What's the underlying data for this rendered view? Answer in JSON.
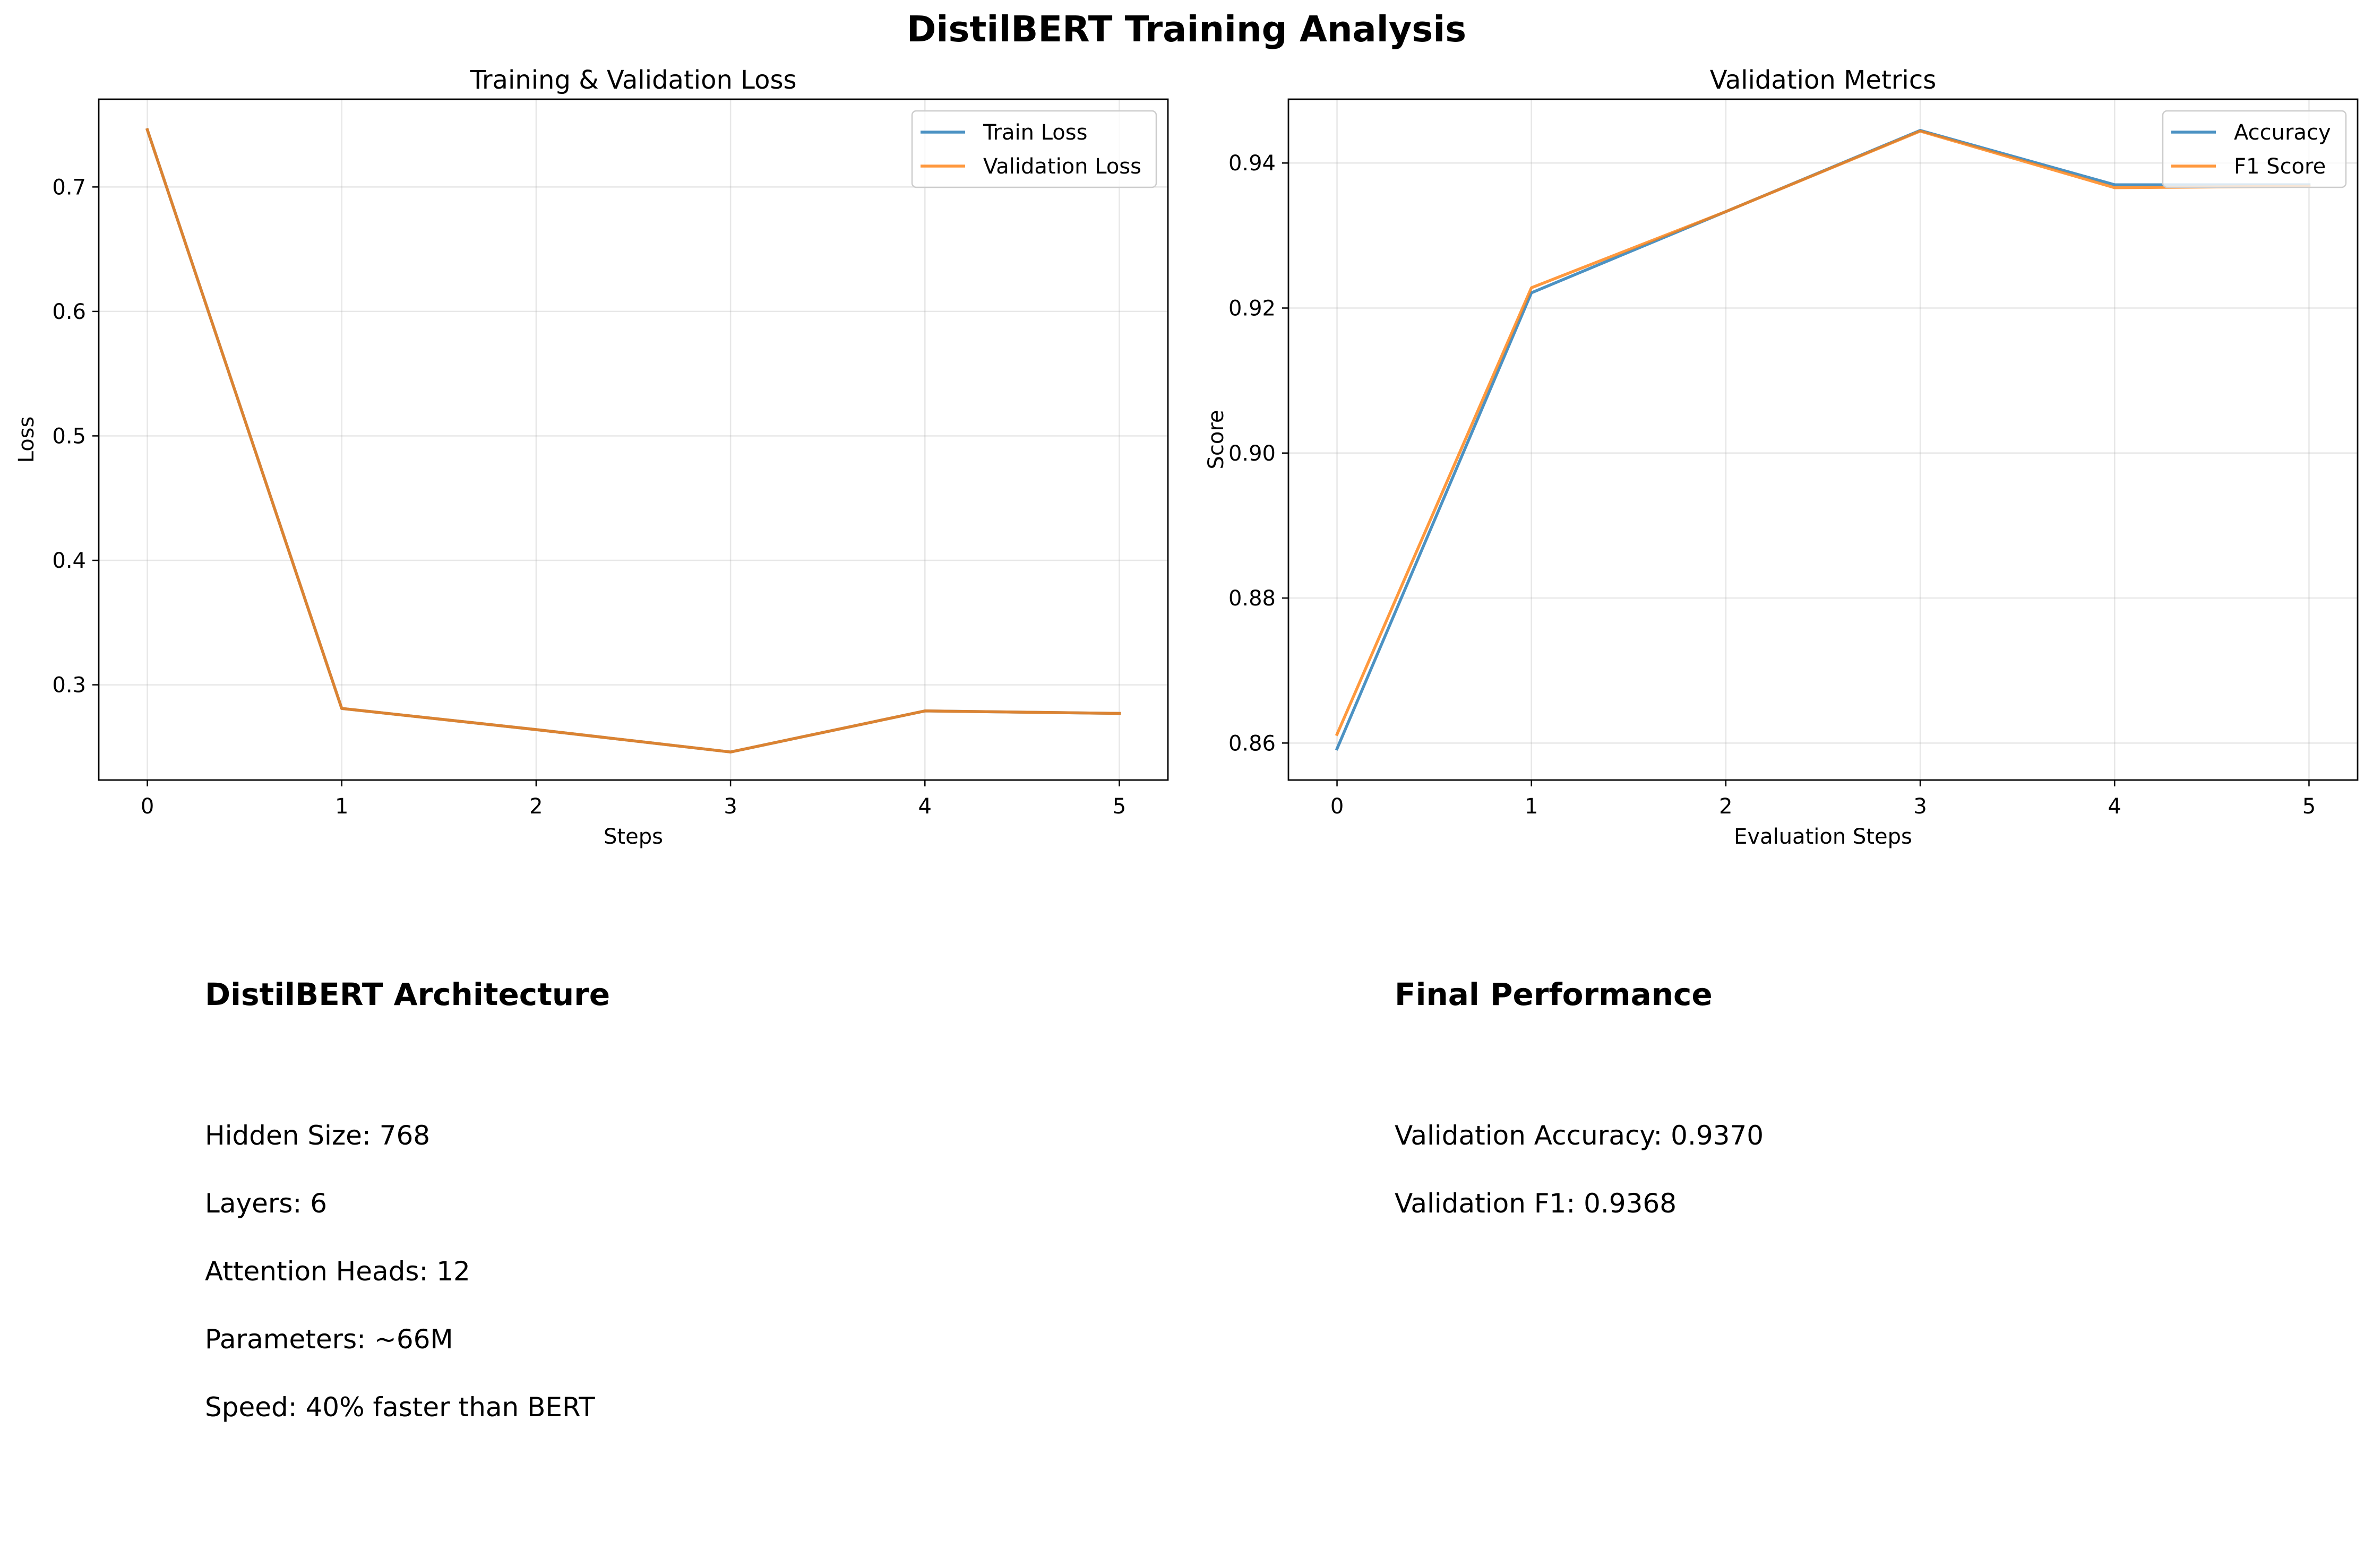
{
  "suptitle": "DistilBERT Training Analysis",
  "chart_data": [
    {
      "type": "line",
      "title": "Training & Validation Loss",
      "xlabel": "Steps",
      "ylabel": "Loss",
      "x": [
        0,
        1,
        2,
        3,
        4,
        5
      ],
      "xlim": [
        -0.25,
        5.25
      ],
      "ylim": [
        0.2235,
        0.7705
      ],
      "xticks": [
        0,
        1,
        2,
        3,
        4,
        5
      ],
      "yticks": [
        0.3,
        0.4,
        0.5,
        0.6,
        0.7
      ],
      "ytick_labels": [
        "0.3",
        "0.4",
        "0.5",
        "0.6",
        "0.7"
      ],
      "grid": true,
      "legend": "upper right",
      "series": [
        {
          "name": "Train Loss",
          "color": "#1f77b4",
          "values": [
            0.746,
            0.281,
            0.264,
            0.246,
            0.279,
            0.277
          ]
        },
        {
          "name": "Validation Loss",
          "color": "#ff7f0e",
          "values": [
            0.746,
            0.281,
            0.264,
            0.246,
            0.279,
            0.277
          ]
        }
      ]
    },
    {
      "type": "line",
      "title": "Validation Metrics",
      "xlabel": "Evaluation Steps",
      "ylabel": "Score",
      "x": [
        0,
        1,
        2,
        3,
        4,
        5
      ],
      "xlim": [
        -0.25,
        5.25
      ],
      "ylim": [
        0.8549,
        0.9488
      ],
      "xticks": [
        0,
        1,
        2,
        3,
        4,
        5
      ],
      "yticks": [
        0.86,
        0.88,
        0.9,
        0.92,
        0.94
      ],
      "ytick_labels": [
        "0.86",
        "0.88",
        "0.90",
        "0.92",
        "0.94"
      ],
      "grid": true,
      "legend": "upper right",
      "series": [
        {
          "name": "Accuracy",
          "color": "#1f77b4",
          "values": [
            0.8592,
            0.9221,
            0.9333,
            0.9445,
            0.937,
            0.937
          ]
        },
        {
          "name": "F1 Score",
          "color": "#ff7f0e",
          "values": [
            0.8612,
            0.9228,
            0.9333,
            0.9444,
            0.9366,
            0.9368
          ]
        }
      ]
    }
  ],
  "architecture": {
    "title": "DistilBERT Architecture",
    "lines": [
      "Hidden Size: 768",
      "Layers: 6",
      "Attention Heads: 12",
      "Parameters: ~66M",
      "Speed: 40% faster than BERT"
    ]
  },
  "performance": {
    "title": "Final Performance",
    "lines": [
      "Validation Accuracy: 0.9370",
      "Validation F1: 0.9368"
    ]
  }
}
